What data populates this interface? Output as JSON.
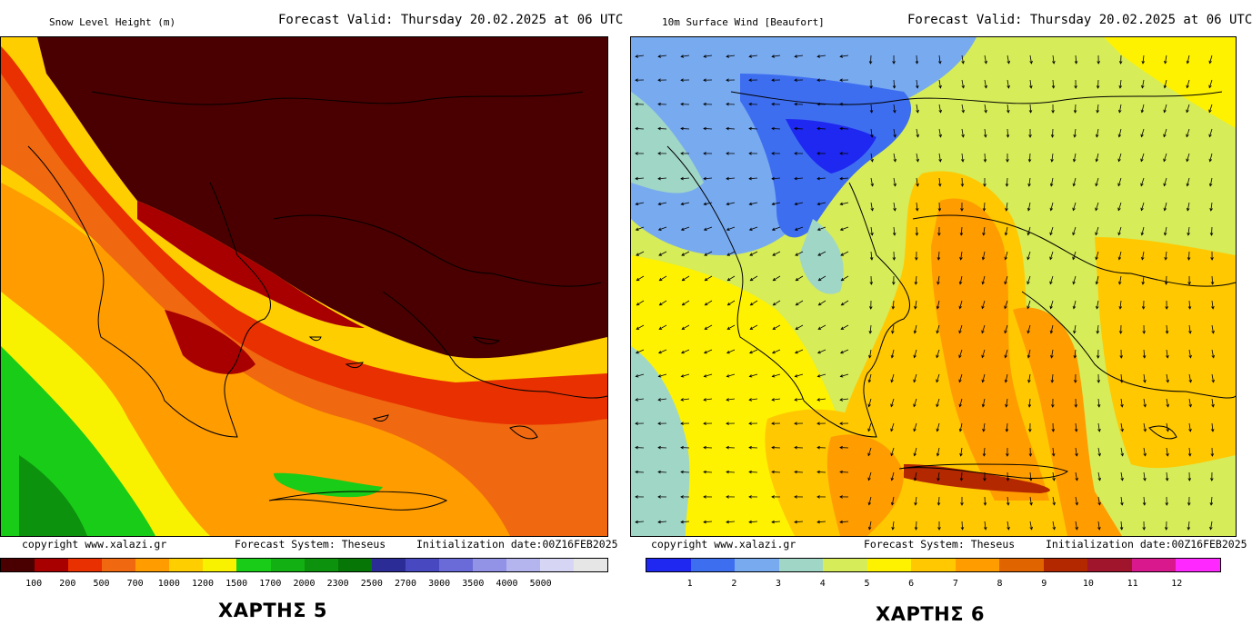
{
  "maps": [
    {
      "field_title": "Snow Level Height (m)",
      "forecast_valid": "Forecast Valid:  Thursday 20.02.2025 at 06 UTC",
      "copyright": "copyright www.xalazi.gr",
      "system": "Forecast System: Theseus",
      "init": "Initialization date:00Z16FEB2025",
      "legend_labels": [
        "100",
        "200",
        "500",
        "700",
        "1000",
        "1200",
        "1500",
        "1700",
        "2000",
        "2300",
        "2500",
        "2700",
        "3000",
        "3500",
        "4000",
        "5000"
      ],
      "legend_colors": [
        "#4a0000",
        "#a80000",
        "#e83000",
        "#f06810",
        "#ff9c00",
        "#ffce00",
        "#f8f200",
        "#18cc18",
        "#12b012",
        "#0c920c",
        "#067606",
        "#2c2c96",
        "#4848c0",
        "#6a6ad8",
        "#9292e6",
        "#b4b4ee",
        "#d6d6f4",
        "#e6e6e6"
      ],
      "caption": "ΧΑΡΤΗΣ 5"
    },
    {
      "field_title": "10m Surface Wind [Beaufort]",
      "forecast_valid": "Forecast Valid:  Thursday 20.02.2025 at 06 UTC",
      "copyright": "copyright www.xalazi.gr",
      "system": "Forecast System: Theseus",
      "init": "Initialization date:00Z16FEB2025",
      "legend_labels": [
        "1",
        "2",
        "3",
        "4",
        "5",
        "6",
        "7",
        "8",
        "9",
        "10",
        "11",
        "12"
      ],
      "legend_colors": [
        "#1e28f0",
        "#3e6ef0",
        "#78aaf0",
        "#a0d6c6",
        "#d6ec58",
        "#fff200",
        "#ffc800",
        "#ff9c00",
        "#e06400",
        "#b42800",
        "#a0142c",
        "#d8188c",
        "#ff28ff"
      ],
      "caption": "ΧΑΡΤΗΣ 6"
    }
  ]
}
